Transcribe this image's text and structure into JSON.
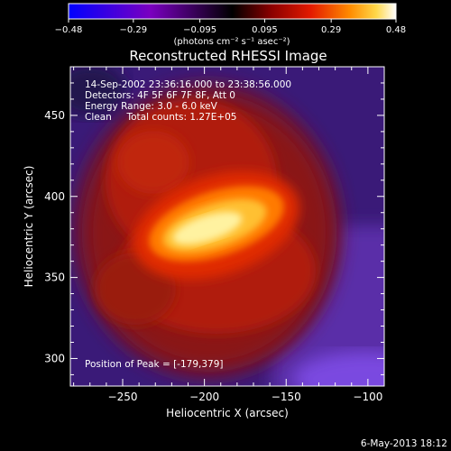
{
  "chart_data": {
    "type": "heatmap",
    "title": "Reconstructed RHESSI Image",
    "xlabel": "Heliocentric X (arcsec)",
    "ylabel": "Heliocentric Y (arcsec)",
    "xlim": [
      -282,
      -90
    ],
    "ylim": [
      283,
      480
    ],
    "x_ticks": [
      -250,
      -200,
      -150,
      -100
    ],
    "x_tick_labels": [
      "−250",
      "−200",
      "−150",
      "−100"
    ],
    "y_ticks": [
      300,
      350,
      400,
      450
    ],
    "y_tick_labels": [
      "300",
      "350",
      "400",
      "450"
    ],
    "colorbar": {
      "range": [
        -0.48,
        0.48
      ],
      "ticks": [
        -0.48,
        -0.29,
        -0.095,
        0.095,
        0.29,
        0.48
      ],
      "tick_labels": [
        "−0.48",
        "−0.29",
        "−0.095",
        "0.095",
        "0.29",
        "0.48"
      ],
      "unit_label": "(photons cm⁻² s⁻¹ asec⁻²)",
      "colormap": [
        "#0000ff",
        "#7a00c0",
        "#000000",
        "#8b0000",
        "#e31a00",
        "#ff8c00",
        "#ffd84a",
        "#ffffff"
      ]
    },
    "annotations": {
      "time_range": "14-Sep-2002 23:36:16.000 to 23:38:56.000",
      "detectors": "Detectors: 4F 5F 6F 7F 8F, Att 0",
      "energy_range": "Energy Range: 3.0 - 6.0 keV",
      "clean_total": "Clean     Total counts: 1.27E+05",
      "peak_position": "Position of Peak = [-179,379]"
    },
    "peak": {
      "x": -179,
      "y": 379,
      "value": 0.48
    },
    "date_stamp": "6-May-2013 18:12"
  }
}
